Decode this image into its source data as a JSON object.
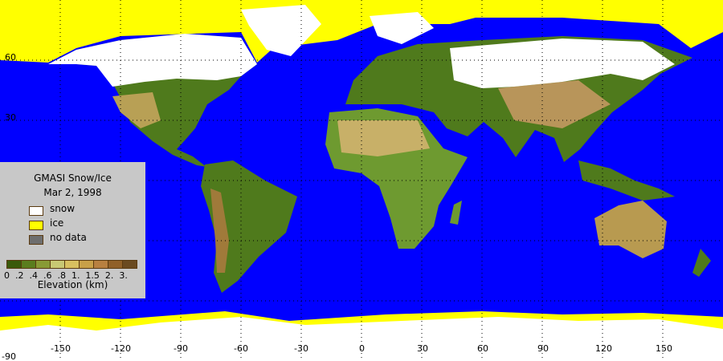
{
  "map": {
    "title": "GMASI Snow/Ice",
    "date": "Mar  2, 1998",
    "projection": "equirectangular",
    "lon_range": [
      -180,
      180
    ],
    "lat_range": [
      -90,
      90
    ],
    "colors": {
      "ocean": "#0000ff",
      "snow": "#ffffff",
      "ice": "#ffff00",
      "no_data": "#6e6e6e",
      "lakes": "#0000ff"
    },
    "lon_labels": [
      "-150",
      "-120",
      "-90",
      "-60",
      "-30",
      "0",
      "30",
      "60",
      "90",
      "120",
      "150"
    ],
    "lat_labels": [
      "60",
      "30",
      "-90"
    ]
  },
  "legend": {
    "items": [
      {
        "label": "snow",
        "color": "#ffffff"
      },
      {
        "label": "ice",
        "color": "#ffff00"
      },
      {
        "label": "no data",
        "color": "#6e6e6e"
      }
    ],
    "elevation_title": "Elevation (km)",
    "elevation_ticks": "0  .2  .4  .6  .8  1.  1.5  2.  3.",
    "elevation_colors": [
      "#3a5a0a",
      "#5a7d1e",
      "#889a35",
      "#c8c874",
      "#d8c060",
      "#c8a048",
      "#b88040",
      "#906028",
      "#6a4a20"
    ]
  }
}
